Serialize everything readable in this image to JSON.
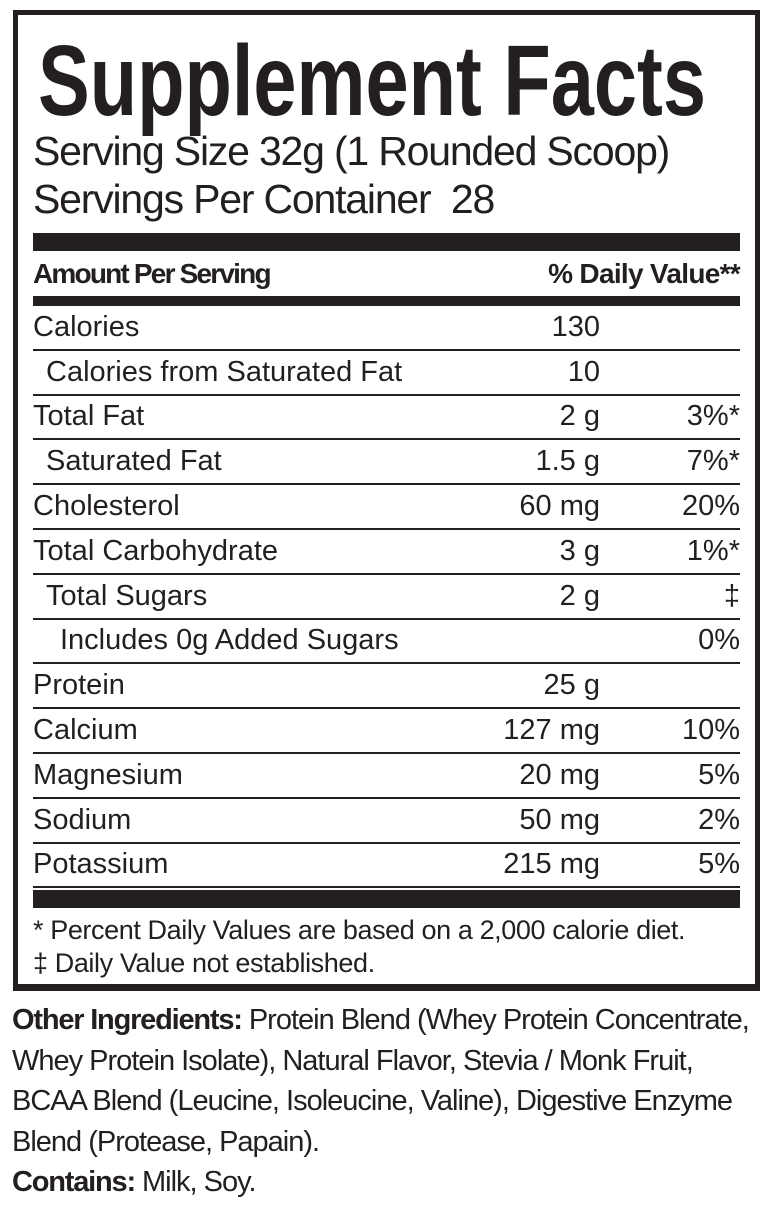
{
  "colors": {
    "ink": "#231f20",
    "background": "#ffffff"
  },
  "panel": {
    "title": "Supplement Facts",
    "serving_size": "Serving Size 32g (1 Rounded Scoop)",
    "servings_per_container": "Servings Per Container  28",
    "column_headers": {
      "left": "Amount Per Serving",
      "right": "% Daily Value**"
    },
    "rows": [
      {
        "label": "Calories",
        "amount": "130",
        "daily_value": "",
        "indent": 0
      },
      {
        "label": "Calories from Saturated Fat",
        "amount": "10",
        "daily_value": "",
        "indent": 1
      },
      {
        "label": "Total Fat",
        "amount": "2 g",
        "daily_value": "3%*",
        "indent": 0
      },
      {
        "label": "Saturated Fat",
        "amount": "1.5 g",
        "daily_value": "7%*",
        "indent": 1
      },
      {
        "label": "Cholesterol",
        "amount": "60 mg",
        "daily_value": "20%",
        "indent": 0
      },
      {
        "label": "Total Carbohydrate",
        "amount": "3 g",
        "daily_value": "1%*",
        "indent": 0
      },
      {
        "label": "Total Sugars",
        "amount": "2 g",
        "daily_value": "‡",
        "indent": 1
      },
      {
        "label": "Includes 0g Added Sugars",
        "amount": "",
        "daily_value": "0%",
        "indent": 2
      },
      {
        "label": "Protein",
        "amount": "25 g",
        "daily_value": "",
        "indent": 0
      },
      {
        "label": "Calcium",
        "amount": "127 mg",
        "daily_value": "10%",
        "indent": 0
      },
      {
        "label": "Magnesium",
        "amount": "20 mg",
        "daily_value": "5%",
        "indent": 0
      },
      {
        "label": "Sodium",
        "amount": "50 mg",
        "daily_value": "2%",
        "indent": 0
      },
      {
        "label": "Potassium",
        "amount": "215 mg",
        "daily_value": "5%",
        "indent": 0
      }
    ],
    "footnotes": [
      "* Percent Daily Values are based on a 2,000 calorie diet.",
      "‡ Daily Value not established."
    ]
  },
  "other_ingredients": {
    "label": "Other Ingredients:",
    "lines": [
      "Protein Blend (Whey Protein Concentrate,",
      "Whey Protein Isolate), Natural Flavor, Stevia / Monk Fruit,",
      "BCAA Blend (Leucine, Isoleucine, Valine), Digestive Enzyme",
      "Blend (Protease, Papain)."
    ]
  },
  "contains": {
    "label": "Contains:",
    "text": "Milk, Soy."
  }
}
